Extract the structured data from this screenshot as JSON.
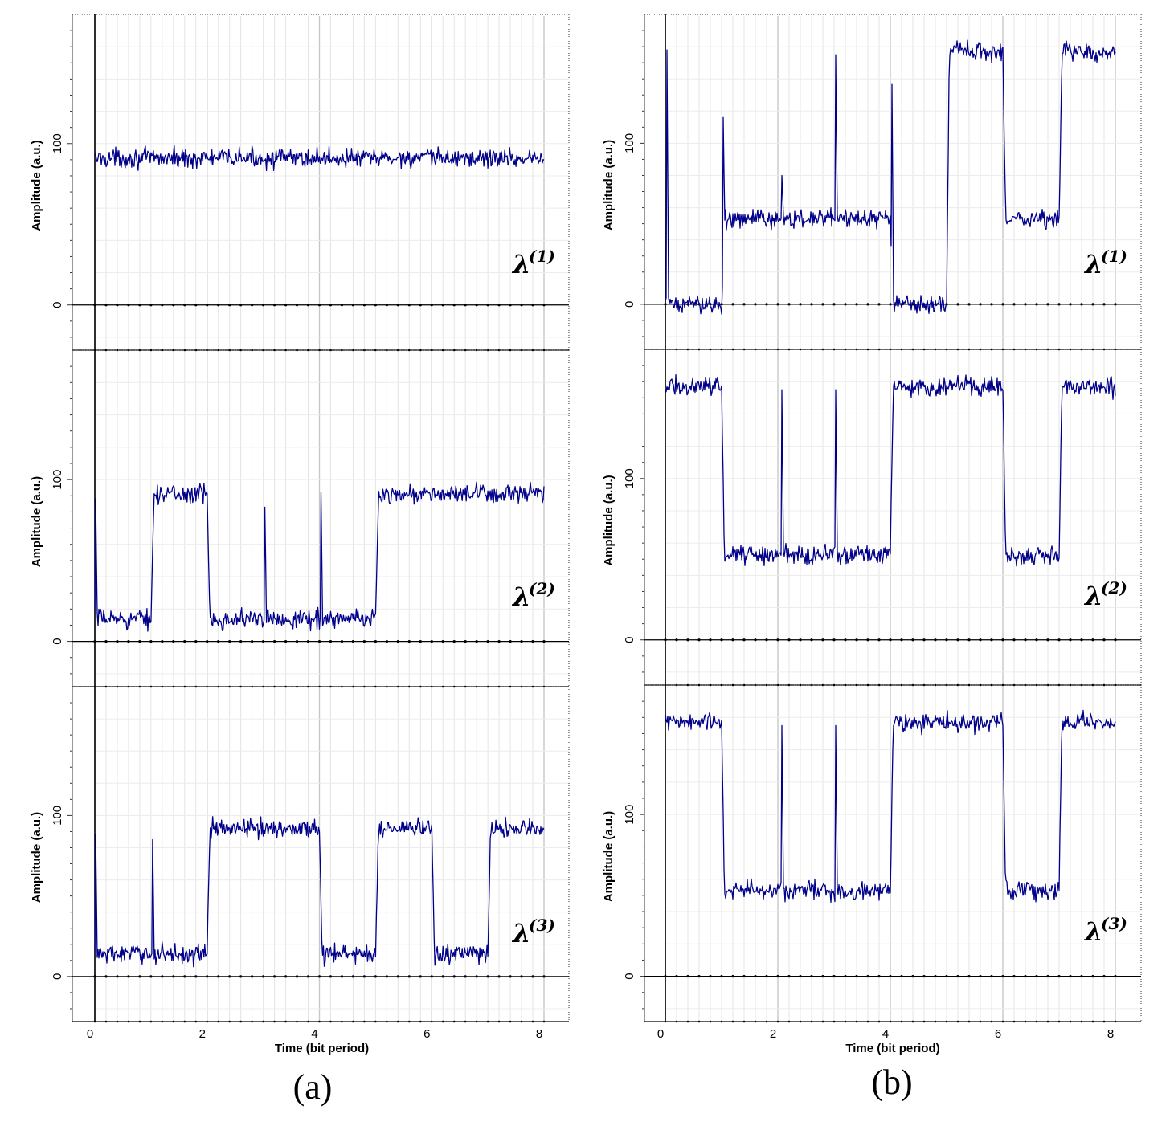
{
  "panel_labels": [
    "(a)",
    "(b)"
  ],
  "chart_data": [
    {
      "type": "line",
      "panel": "(a)",
      "subplot_label": "λ",
      "subplot_sup": "(1)",
      "xlabel": "",
      "ylabel": "Amplitude (a.u.)",
      "xlim": [
        -0.4,
        8.4
      ],
      "ylim": [
        -28,
        180
      ],
      "x_ticks": [
        0,
        2,
        4,
        6,
        8
      ],
      "y_ticks": [
        0,
        100
      ],
      "grid": true,
      "high": 91,
      "low": 14,
      "noise": 5,
      "bits": [
        1,
        1,
        1,
        1,
        1,
        1,
        1,
        1
      ],
      "spikes": []
    },
    {
      "type": "line",
      "panel": "(a)",
      "subplot_label": "λ",
      "subplot_sup": "(2)",
      "xlabel": "",
      "ylabel": "Amplitude (a.u.)",
      "xlim": [
        -0.4,
        8.4
      ],
      "ylim": [
        -28,
        180
      ],
      "x_ticks": [
        0,
        2,
        4,
        6,
        8
      ],
      "y_ticks": [
        0,
        100
      ],
      "grid": true,
      "high": 91,
      "low": 14,
      "noise": 5,
      "bits": [
        0,
        1,
        0,
        0,
        0,
        1,
        1,
        1
      ],
      "spikes": [
        {
          "x": 0.01,
          "y": 88
        },
        {
          "x": 3.03,
          "y": 83
        },
        {
          "x": 4.03,
          "y": 92
        }
      ]
    },
    {
      "type": "line",
      "panel": "(a)",
      "subplot_label": "λ",
      "subplot_sup": "(3)",
      "xlabel": "Time (bit period)",
      "ylabel": "Amplitude (a.u.)",
      "xlim": [
        -0.4,
        8.4
      ],
      "ylim": [
        -28,
        180
      ],
      "x_ticks": [
        0,
        2,
        4,
        6,
        8
      ],
      "y_ticks": [
        0,
        100
      ],
      "grid": true,
      "high": 92,
      "low": 14,
      "noise": 5,
      "bits": [
        0,
        0,
        1,
        1,
        0,
        1,
        0,
        1
      ],
      "spikes": [
        {
          "x": 0.01,
          "y": 88
        },
        {
          "x": 1.03,
          "y": 85
        }
      ]
    },
    {
      "type": "line",
      "panel": "(b)",
      "subplot_label": "λ",
      "subplot_sup": "(1)",
      "xlabel": "",
      "ylabel": "Amplitude (a.u.)",
      "xlim": [
        -0.2,
        8.4
      ],
      "ylim": [
        -28,
        180
      ],
      "x_ticks": [
        0,
        2,
        4,
        6,
        8
      ],
      "y_ticks": [
        0,
        100
      ],
      "grid": true,
      "levels": [
        0,
        53,
        53,
        53,
        0,
        157,
        53,
        157
      ],
      "noise": 5,
      "spikes": [
        {
          "x": 0.03,
          "y": 158
        },
        {
          "x": 1.03,
          "y": 116
        },
        {
          "x": 2.07,
          "y": 80
        },
        {
          "x": 3.03,
          "y": 155
        },
        {
          "x": 4.03,
          "y": 137
        }
      ]
    },
    {
      "type": "line",
      "panel": "(b)",
      "subplot_label": "λ",
      "subplot_sup": "(2)",
      "xlabel": "",
      "ylabel": "Amplitude (a.u.)",
      "xlim": [
        -0.2,
        8.4
      ],
      "ylim": [
        -28,
        180
      ],
      "x_ticks": [
        0,
        2,
        4,
        6,
        8
      ],
      "y_ticks": [
        0,
        100
      ],
      "grid": true,
      "levels": [
        157,
        53,
        53,
        53,
        157,
        157,
        53,
        157
      ],
      "noise": 5,
      "spikes": [
        {
          "x": 2.07,
          "y": 155
        },
        {
          "x": 3.03,
          "y": 155
        }
      ]
    },
    {
      "type": "line",
      "panel": "(b)",
      "subplot_label": "λ",
      "subplot_sup": "(3)",
      "xlabel": "Time (bit period)",
      "ylabel": "Amplitude (a.u.)",
      "xlim": [
        -0.2,
        8.4
      ],
      "ylim": [
        -28,
        180
      ],
      "x_ticks": [
        0,
        2,
        4,
        6,
        8
      ],
      "y_ticks": [
        0,
        100
      ],
      "grid": true,
      "levels": [
        157,
        53,
        53,
        53,
        157,
        157,
        53,
        157
      ],
      "noise": 5,
      "spikes": [
        {
          "x": 2.07,
          "y": 155
        },
        {
          "x": 3.03,
          "y": 155
        }
      ]
    }
  ]
}
